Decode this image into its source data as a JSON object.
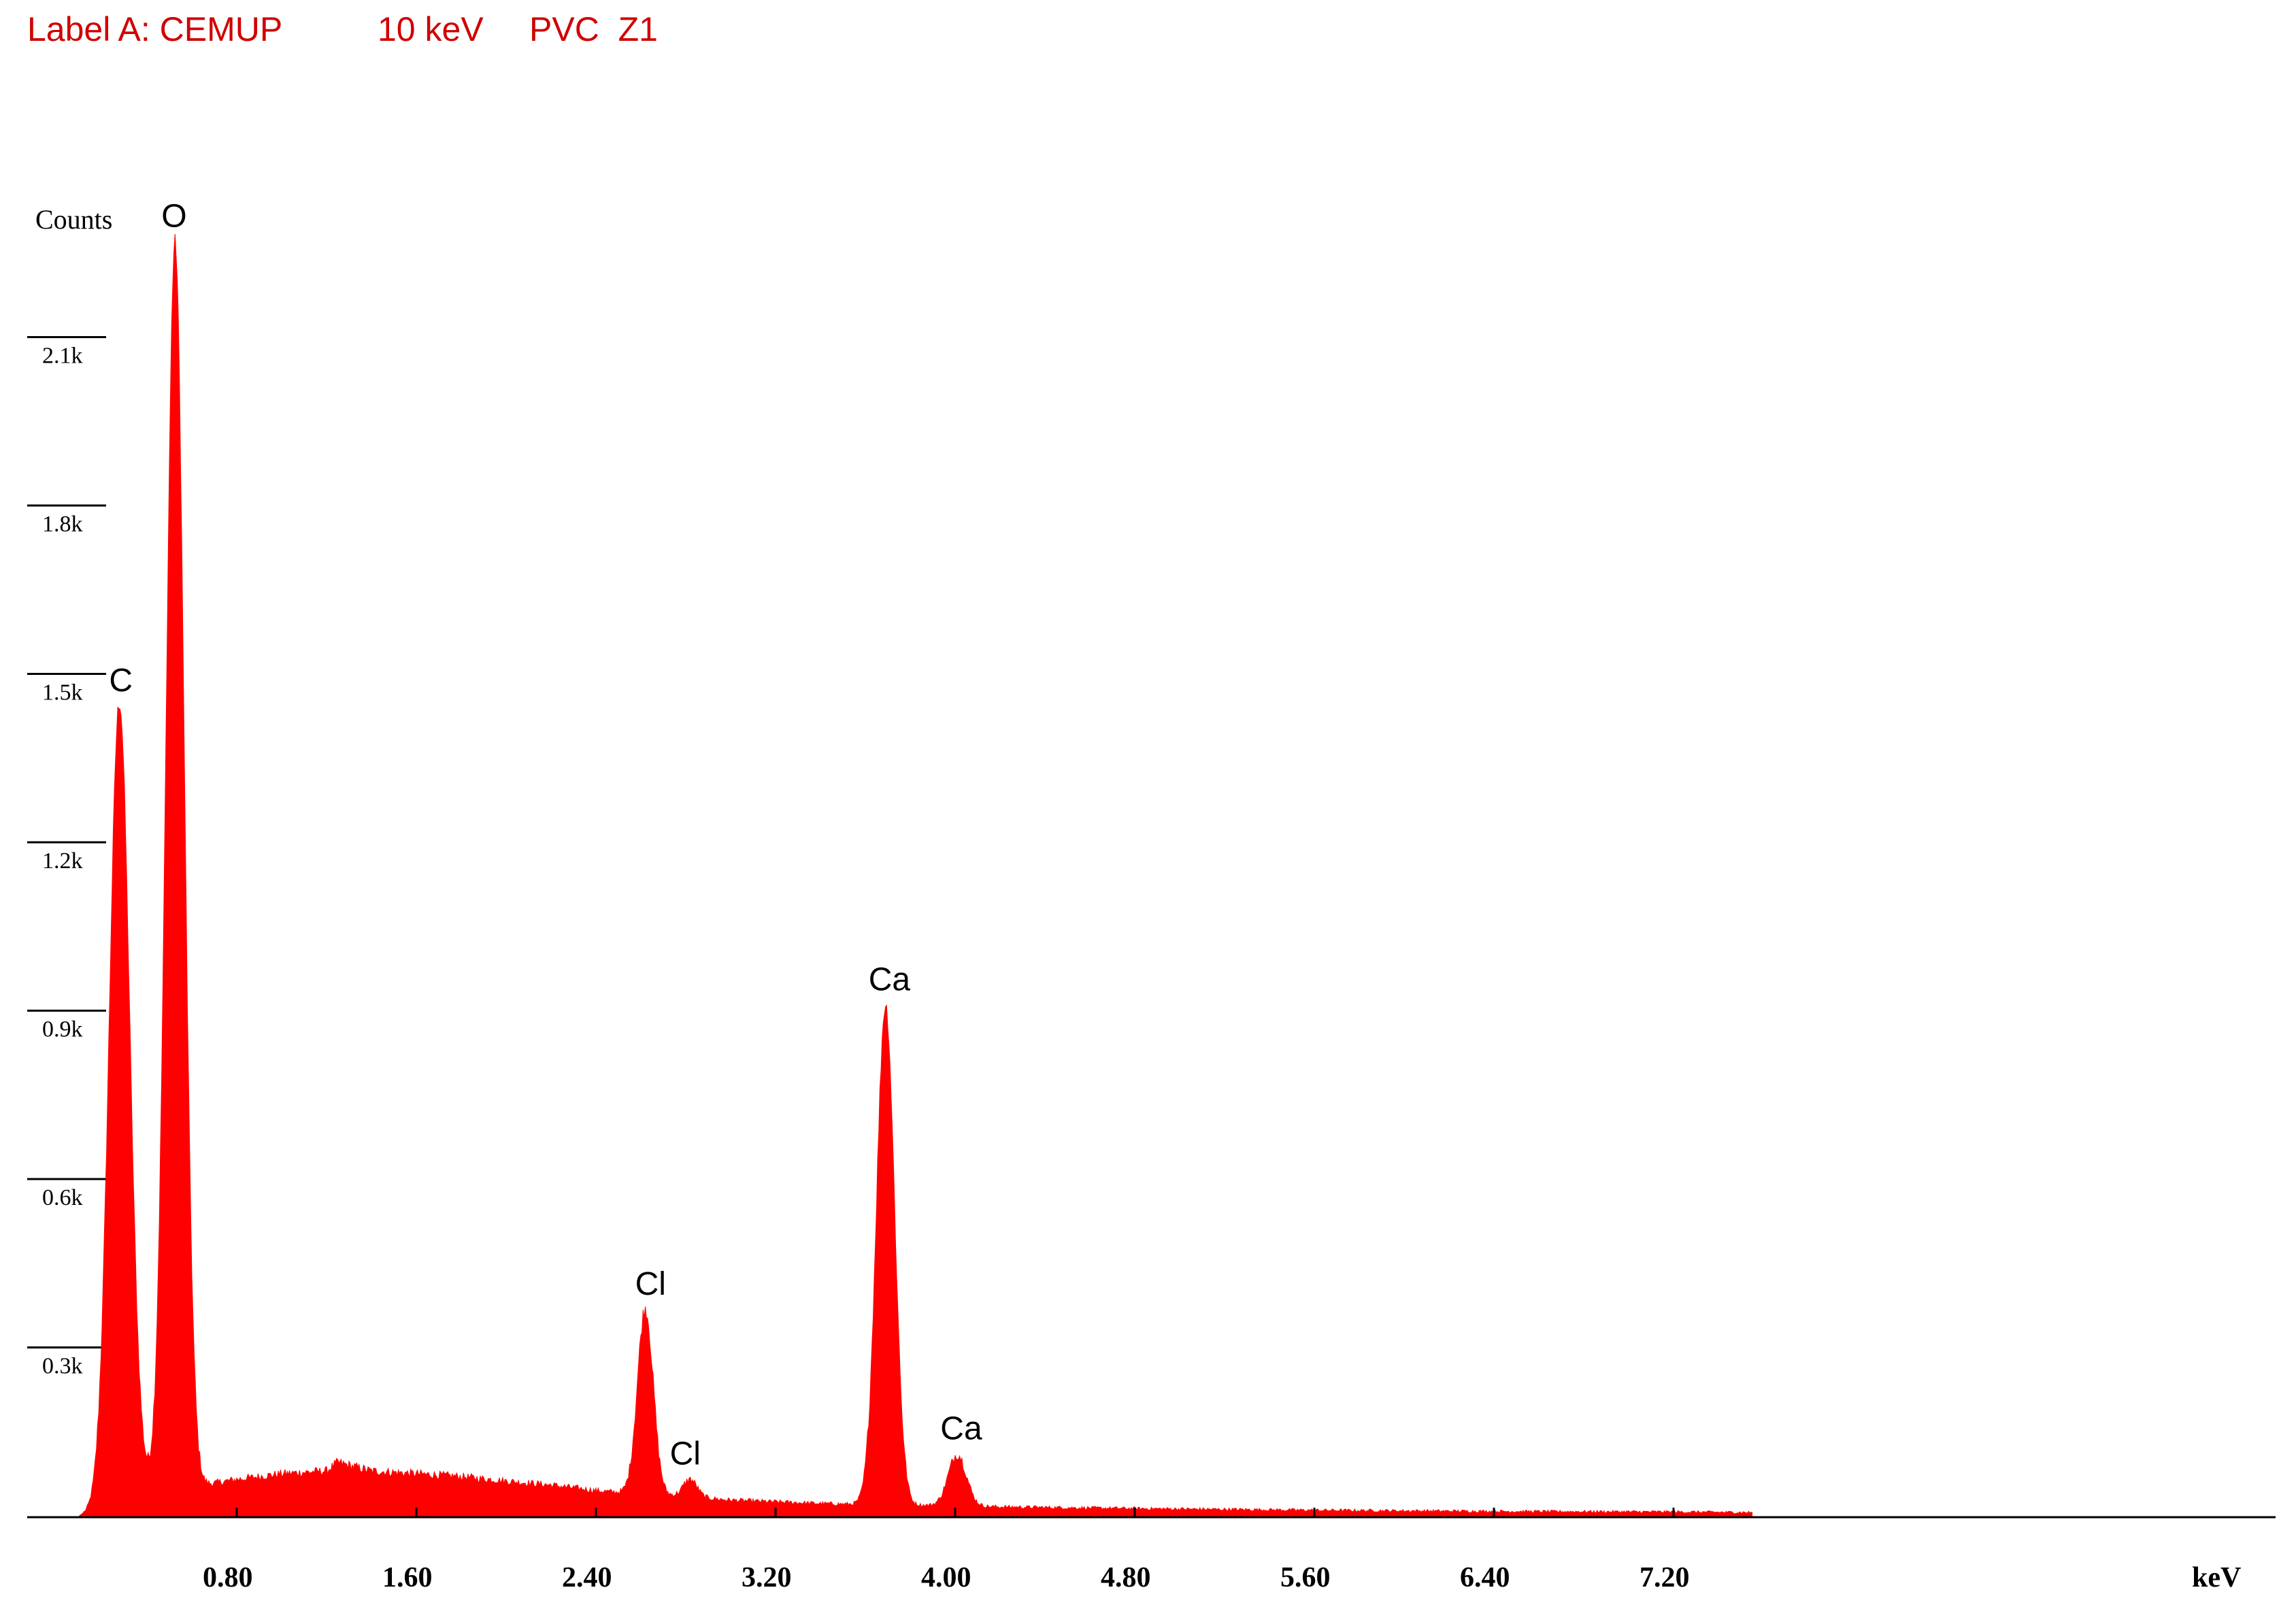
{
  "header": {
    "label": "Label A: CEMUP",
    "energy": "10 keV",
    "sample": "PVC  Z1"
  },
  "colors": {
    "spectrum": "#ff0000",
    "title": "#d00000",
    "axis": "#000000"
  },
  "chart_data": {
    "type": "area",
    "title": "",
    "xlabel": "keV",
    "ylabel": "Counts",
    "xlim": [
      0,
      7.55
    ],
    "ylim": [
      0,
      2300
    ],
    "x_ticks": [
      0.8,
      1.6,
      2.4,
      3.2,
      4.0,
      4.8,
      5.6,
      6.4,
      7.2
    ],
    "x_tick_labels": [
      "0.80",
      "1.60",
      "2.40",
      "3.20",
      "4.00",
      "4.80",
      "5.60",
      "6.40",
      "7.20"
    ],
    "y_ticks": [
      300,
      600,
      900,
      1200,
      1500,
      1800,
      2100
    ],
    "y_tick_labels": [
      "0.3k",
      "0.6k",
      "0.9k",
      "1.2k",
      "1.5k",
      "1.8k",
      "2.1k"
    ],
    "grid": false,
    "peaks": [
      {
        "label": "C",
        "energy": 0.277,
        "counts": 1450
      },
      {
        "label": "O",
        "energy": 0.525,
        "counts": 2270
      },
      {
        "label": "Cl",
        "energy": 2.62,
        "counts": 370
      },
      {
        "label": "Cl",
        "energy": 2.82,
        "counts": 65
      },
      {
        "label": "Ca",
        "energy": 3.69,
        "counts": 910
      },
      {
        "label": "Ca",
        "energy": 4.01,
        "counts": 110
      }
    ],
    "peak_widths": [
      0.045,
      0.04,
      0.035,
      0.03,
      0.04,
      0.04
    ],
    "background": [
      [
        0.1,
        0
      ],
      [
        0.2,
        20
      ],
      [
        0.35,
        60
      ],
      [
        0.45,
        50
      ],
      [
        0.65,
        55
      ],
      [
        0.8,
        65
      ],
      [
        1.0,
        75
      ],
      [
        1.2,
        80
      ],
      [
        1.25,
        95
      ],
      [
        1.4,
        80
      ],
      [
        1.6,
        75
      ],
      [
        1.8,
        70
      ],
      [
        2.0,
        62
      ],
      [
        2.2,
        55
      ],
      [
        2.4,
        45
      ],
      [
        2.55,
        40
      ],
      [
        2.8,
        35
      ],
      [
        3.0,
        28
      ],
      [
        3.2,
        25
      ],
      [
        3.4,
        22
      ],
      [
        3.6,
        20
      ],
      [
        4.0,
        18
      ],
      [
        4.2,
        16
      ],
      [
        4.8,
        13
      ],
      [
        5.6,
        10
      ],
      [
        6.4,
        8
      ],
      [
        7.2,
        7
      ],
      [
        7.55,
        6
      ]
    ]
  }
}
